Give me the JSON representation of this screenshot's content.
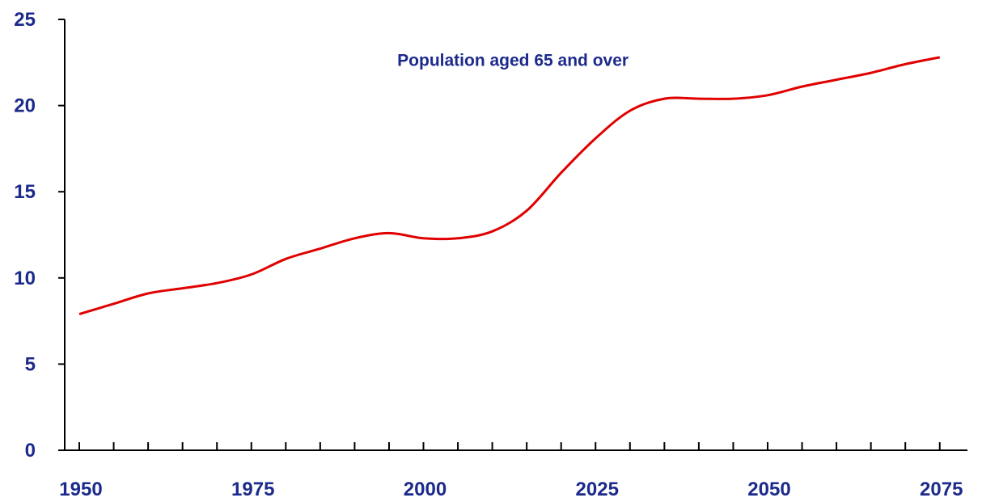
{
  "chart_data": {
    "type": "line",
    "title": "",
    "xlabel": "",
    "ylabel": "",
    "xlim": [
      1950,
      2077
    ],
    "ylim": [
      0,
      25
    ],
    "x_ticks": [
      1950,
      1975,
      2000,
      2025,
      2050,
      2075
    ],
    "x_tick_labels": [
      "1950",
      "1975",
      "2000",
      "2025",
      "2050",
      "2075"
    ],
    "y_ticks": [
      0,
      5,
      10,
      15,
      20,
      25
    ],
    "y_tick_labels": [
      "0",
      "5",
      "10",
      "15",
      "20",
      "25"
    ],
    "grid": false,
    "legend": "none",
    "annotations": [
      {
        "text": "Population aged 65 and over",
        "x": 2013,
        "y": 22.3
      }
    ],
    "series": [
      {
        "color": "#e00000",
        "x": [
          1950,
          1955,
          1960,
          1965,
          1970,
          1975,
          1980,
          1985,
          1990,
          1995,
          2000,
          2005,
          2010,
          2015,
          2020,
          2025,
          2030,
          2035,
          2040,
          2045,
          2050,
          2055,
          2060,
          2065,
          2070,
          2075
        ],
        "y": [
          7.9,
          8.5,
          9.1,
          9.4,
          9.7,
          10.2,
          11.1,
          11.7,
          12.3,
          12.6,
          12.3,
          12.3,
          12.7,
          13.9,
          16.1,
          18.1,
          19.7,
          20.4,
          20.4,
          20.4,
          20.6,
          21.1,
          21.5,
          21.9,
          22.4,
          22.8
        ]
      }
    ]
  }
}
